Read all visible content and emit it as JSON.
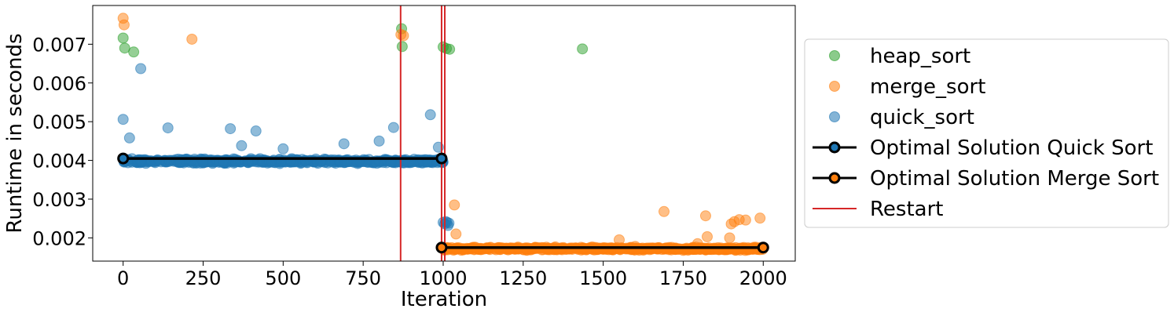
{
  "chart_data": {
    "type": "scatter",
    "xlabel": "Iteration",
    "ylabel": "Runtime in seconds",
    "xlim": [
      -95,
      2100
    ],
    "ylim": [
      0.0014,
      0.008
    ],
    "xticks": [
      0,
      250,
      500,
      750,
      1000,
      1250,
      1500,
      1750,
      2000
    ],
    "xtick_labels": [
      "0",
      "250",
      "500",
      "750",
      "1000",
      "1250",
      "1500",
      "1750",
      "2000"
    ],
    "yticks": [
      0.002,
      0.003,
      0.004,
      0.005,
      0.006,
      0.007
    ],
    "ytick_labels": [
      "0.002",
      "0.003",
      "0.004",
      "0.005",
      "0.006",
      "0.007"
    ],
    "grid": false,
    "legend_position": "outside-right",
    "colors": {
      "heap_sort": "#2ca02c",
      "merge_sort": "#ff7f0e",
      "quick_sort": "#1f77b4",
      "optimal": "#000000",
      "restart": "#d62728"
    },
    "series": [
      {
        "name": "heap_sort",
        "type": "scatter",
        "points": [
          [
            0,
            0.00716
          ],
          [
            5,
            0.0069
          ],
          [
            33,
            0.0068
          ],
          [
            870,
            0.0074
          ],
          [
            872,
            0.00694
          ],
          [
            1000,
            0.00693
          ],
          [
            1010,
            0.00689
          ],
          [
            1020,
            0.00687
          ],
          [
            1435,
            0.00688
          ]
        ]
      },
      {
        "name": "merge_sort",
        "type": "scatter",
        "points": [
          [
            0,
            0.00767
          ],
          [
            3,
            0.0075
          ],
          [
            215,
            0.00713
          ],
          [
            868,
            0.00725
          ],
          [
            876,
            0.00722
          ],
          [
            1035,
            0.00285
          ],
          [
            1040,
            0.0021
          ],
          [
            1690,
            0.00268
          ],
          [
            1795,
            0.00185
          ],
          [
            1820,
            0.00257
          ],
          [
            1825,
            0.00203
          ],
          [
            1900,
            0.00236
          ],
          [
            1910,
            0.00242
          ],
          [
            1925,
            0.00247
          ],
          [
            1945,
            0.00246
          ],
          [
            1990,
            0.00251
          ],
          [
            1600,
            0.00178
          ],
          [
            1550,
            0.00195
          ],
          [
            1895,
            0.002
          ]
        ],
        "band": {
          "x_start": 1000,
          "x_end": 2000,
          "center": 0.00172,
          "spread": 6e-05,
          "count": 520
        }
      },
      {
        "name": "quick_sort",
        "type": "scatter",
        "points": [
          [
            0,
            0.00506
          ],
          [
            20,
            0.00458
          ],
          [
            55,
            0.00637
          ],
          [
            140,
            0.00484
          ],
          [
            335,
            0.00482
          ],
          [
            370,
            0.00438
          ],
          [
            415,
            0.00476
          ],
          [
            500,
            0.0043
          ],
          [
            690,
            0.00443
          ],
          [
            800,
            0.0045
          ],
          [
            845,
            0.00485
          ],
          [
            960,
            0.00518
          ],
          [
            985,
            0.00434
          ],
          [
            1000,
            0.0024
          ],
          [
            1005,
            0.00236
          ],
          [
            1008,
            0.00242
          ],
          [
            1012,
            0.0024
          ],
          [
            1015,
            0.00232
          ],
          [
            1018,
            0.00238
          ]
        ],
        "band": {
          "x_start": 0,
          "x_end": 1000,
          "center": 0.00398,
          "spread": 9e-05,
          "count": 480
        }
      },
      {
        "name": "Optimal Solution Quick Sort",
        "type": "line",
        "points": [
          [
            0,
            0.00405
          ],
          [
            995,
            0.00405
          ]
        ],
        "marker_color": "#1f77b4"
      },
      {
        "name": "Optimal Solution Merge Sort",
        "type": "line",
        "points": [
          [
            995,
            0.00175
          ],
          [
            2000,
            0.00175
          ]
        ],
        "marker_color": "#ff7f0e"
      },
      {
        "name": "Restart",
        "type": "vline",
        "x": [
          867,
          995,
          1005
        ]
      }
    ]
  }
}
